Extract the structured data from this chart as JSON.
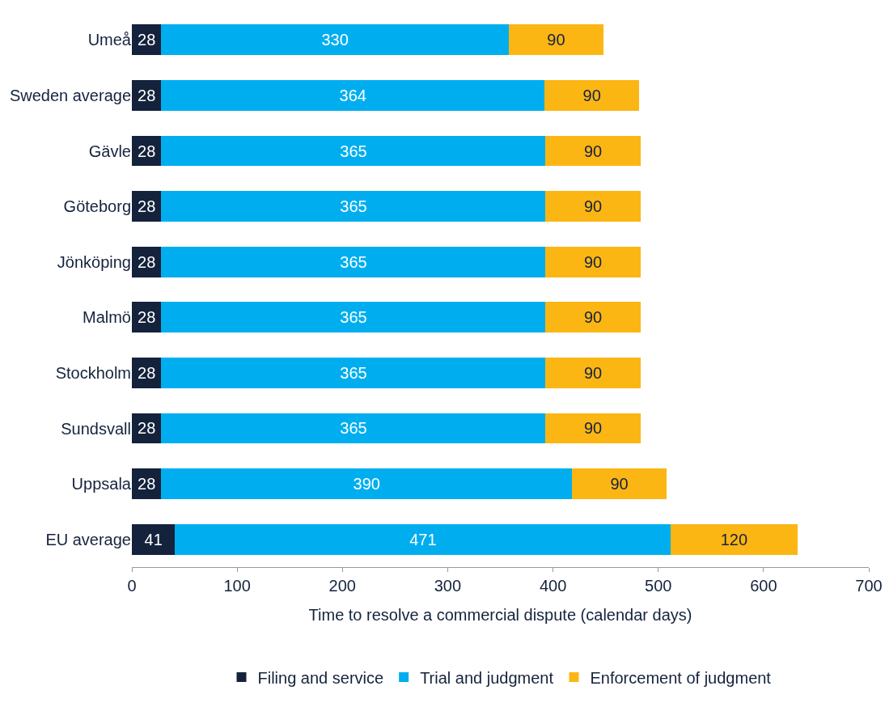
{
  "chart_data": {
    "type": "bar",
    "orientation": "horizontal",
    "stacked": true,
    "data_labels": true,
    "grid": false,
    "legend": "bottom",
    "xlabel": "Time to resolve a commercial dispute (calendar days)",
    "categories": [
      "Umeå",
      "Sweden average",
      "Gävle",
      "Göteborg",
      "Jönköping",
      "Malmö",
      "Stockholm",
      "Sundsvall",
      "Uppsala",
      "EU average"
    ],
    "series": [
      {
        "name": "Filing and service",
        "color": "#14223c",
        "values": [
          28,
          28,
          28,
          28,
          28,
          28,
          28,
          28,
          28,
          41
        ]
      },
      {
        "name": "Trial and judgment",
        "color": "#00aeef",
        "values": [
          330,
          364,
          365,
          365,
          365,
          365,
          365,
          365,
          390,
          471
        ]
      },
      {
        "name": "Enforcement of judgment",
        "color": "#fbb614",
        "values": [
          90,
          90,
          90,
          90,
          90,
          90,
          90,
          90,
          90,
          120
        ]
      }
    ],
    "xlim": [
      0,
      700
    ],
    "xticks": [
      0,
      100,
      200,
      300,
      400,
      500,
      600,
      700
    ]
  }
}
